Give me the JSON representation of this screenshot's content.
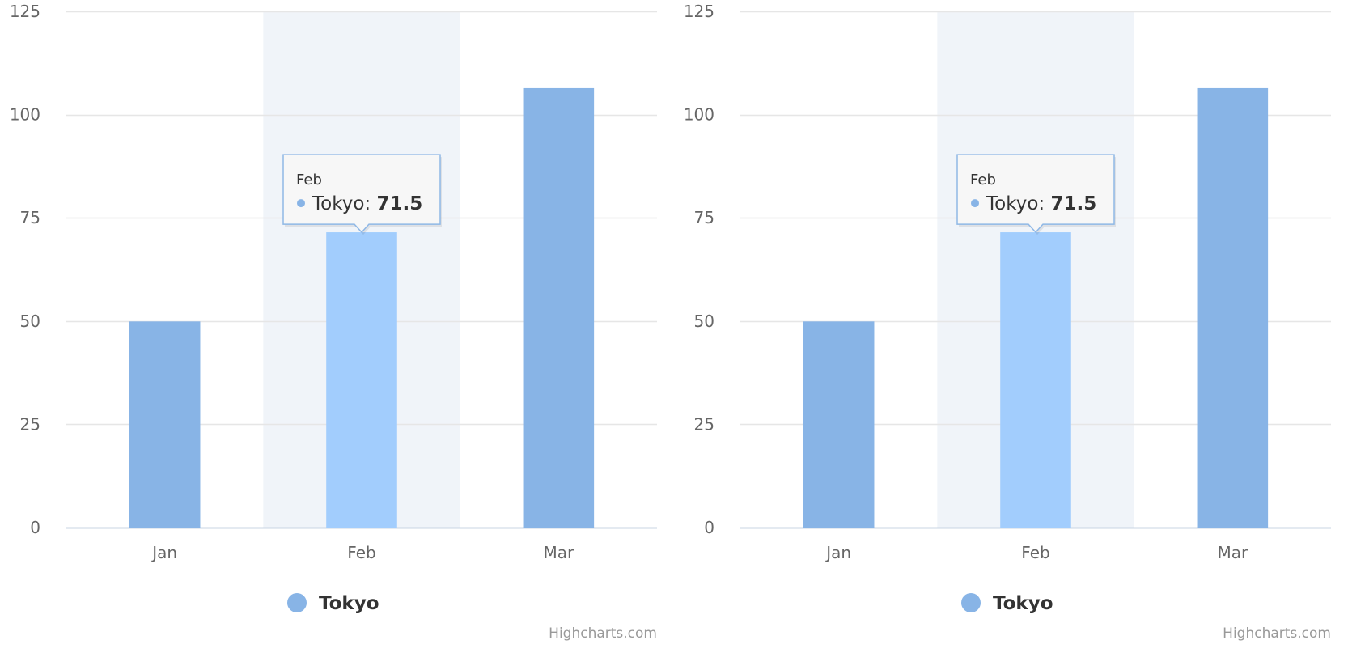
{
  "colors": {
    "series": "#88b4e6",
    "hover": "#a2cdfd",
    "plot_band": "#f0f4f9",
    "grid": "#e6e6e6",
    "axis_line": "#c8d4e3",
    "tooltip_border": "#8fb8e6",
    "tooltip_bg": "#f7f7f7"
  },
  "chart_data": [
    {
      "type": "bar",
      "categories": [
        "Jan",
        "Feb",
        "Mar"
      ],
      "series": [
        {
          "name": "Tokyo",
          "values": [
            49.9,
            71.5,
            106.4
          ]
        }
      ],
      "ylim": [
        0,
        125
      ],
      "yticks": [
        0,
        25,
        50,
        75,
        100,
        125
      ],
      "ytick_labels": [
        "0",
        "25",
        "50",
        "75",
        "100",
        "125"
      ],
      "grid": true,
      "legend": "bottom-center",
      "highlighted_category": "Feb",
      "tooltip": {
        "header": "Feb",
        "series": "Tokyo",
        "value": "71.5"
      },
      "credit": "Highcharts.com"
    },
    {
      "type": "bar",
      "categories": [
        "Jan",
        "Feb",
        "Mar"
      ],
      "series": [
        {
          "name": "Tokyo",
          "values": [
            49.9,
            71.5,
            106.4
          ]
        }
      ],
      "ylim": [
        0,
        125
      ],
      "yticks": [
        0,
        25,
        50,
        75,
        100,
        125
      ],
      "ytick_labels": [
        "0",
        "25",
        "50",
        "75",
        "100",
        "125"
      ],
      "grid": true,
      "legend": "bottom-center",
      "highlighted_category": "Feb",
      "tooltip": {
        "header": "Feb",
        "series": "Tokyo",
        "value": "71.5"
      },
      "credit": "Highcharts.com"
    }
  ]
}
